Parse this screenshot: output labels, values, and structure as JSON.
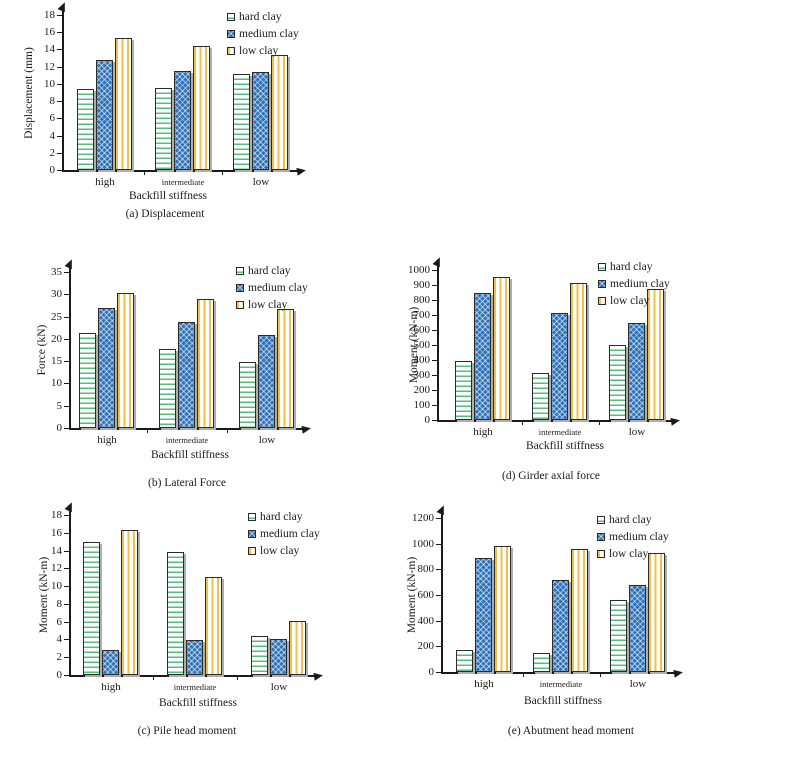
{
  "figure": {
    "x_axis_label": "Backfill stiffness",
    "categories": [
      "high",
      "intermediate",
      "low"
    ],
    "series_names": [
      "hard clay",
      "medium clay",
      "low clay"
    ]
  },
  "colors": {
    "green": "#56bd7e",
    "blue": "#2e72b8",
    "blue_light": "#a6c8e8",
    "yellow": "#f2bf4a",
    "axis": "#1a1a1a",
    "text": "#1b1b1b",
    "shadow": "#aeaeae",
    "background": "#ffffff"
  },
  "chart_data": [
    {
      "id": "a",
      "type": "bar",
      "caption": "(a) Displacement",
      "ylabel": "Displacement (mm)",
      "xlabel": "Backfill stiffness",
      "ylim": [
        0,
        18
      ],
      "ytick_step": 2,
      "yticks": [
        0,
        2,
        4,
        6,
        8,
        10,
        12,
        14,
        16,
        18
      ],
      "grid": false,
      "legend_position": "top-right",
      "categories": [
        "high",
        "intermediate",
        "low"
      ],
      "series": [
        {
          "name": "hard clay",
          "values": [
            9.4,
            9.5,
            11.2
          ]
        },
        {
          "name": "medium clay",
          "values": [
            12.8,
            11.5,
            11.4
          ]
        },
        {
          "name": "low clay",
          "values": [
            15.3,
            14.4,
            13.4
          ]
        }
      ]
    },
    {
      "id": "b",
      "type": "bar",
      "caption": "(b) Lateral Force",
      "ylabel": "Force (kN)",
      "xlabel": "Backfill stiffness",
      "ylim": [
        0,
        35
      ],
      "ytick_step": 5,
      "yticks": [
        0,
        5,
        10,
        15,
        20,
        25,
        30,
        35
      ],
      "grid": false,
      "legend_position": "top-right",
      "categories": [
        "high",
        "intermediate",
        "low"
      ],
      "series": [
        {
          "name": "hard clay",
          "values": [
            21.3,
            17.7,
            14.8
          ]
        },
        {
          "name": "medium clay",
          "values": [
            27.0,
            23.8,
            20.8
          ]
        },
        {
          "name": "low clay",
          "values": [
            30.4,
            28.9,
            26.6
          ]
        }
      ]
    },
    {
      "id": "d",
      "type": "bar",
      "caption": "(d) Girder axial force",
      "ylabel": "Moment (kN-m)",
      "xlabel": "Backfill stiffness",
      "ylim": [
        0,
        1000
      ],
      "ytick_step": 100,
      "yticks": [
        0,
        100,
        200,
        300,
        400,
        500,
        600,
        700,
        800,
        900,
        1000
      ],
      "grid": false,
      "legend_position": "top-right",
      "categories": [
        "high",
        "intermediate",
        "low"
      ],
      "series": [
        {
          "name": "hard clay",
          "values": [
            390,
            315,
            500
          ]
        },
        {
          "name": "medium clay",
          "values": [
            845,
            710,
            645
          ]
        },
        {
          "name": "low clay",
          "values": [
            950,
            915,
            875
          ]
        }
      ]
    },
    {
      "id": "c",
      "type": "bar",
      "caption": "(c) Pile head moment",
      "ylabel": "Moment (kN-m)",
      "xlabel": "Backfill stiffness",
      "ylim": [
        0,
        18
      ],
      "ytick_step": 2,
      "yticks": [
        0,
        2,
        4,
        6,
        8,
        10,
        12,
        14,
        16,
        18
      ],
      "grid": false,
      "legend_position": "top-right",
      "categories": [
        "high",
        "intermediate",
        "low"
      ],
      "series": [
        {
          "name": "hard clay",
          "values": [
            15.0,
            13.8,
            4.4
          ]
        },
        {
          "name": "medium clay",
          "values": [
            2.8,
            3.9,
            4.0
          ]
        },
        {
          "name": "low clay",
          "values": [
            16.3,
            11.0,
            6.1
          ]
        }
      ]
    },
    {
      "id": "e",
      "type": "bar",
      "caption": "(e) Abutment head moment",
      "ylabel": "Moment (kN-m)",
      "xlabel": "Backfill stiffness",
      "ylim": [
        0,
        1200
      ],
      "ytick_step": 200,
      "yticks": [
        0,
        200,
        400,
        600,
        800,
        1000,
        1200
      ],
      "grid": false,
      "legend_position": "top-right",
      "categories": [
        "high",
        "intermediate",
        "low"
      ],
      "series": [
        {
          "name": "hard clay",
          "values": [
            170,
            145,
            560
          ]
        },
        {
          "name": "medium clay",
          "values": [
            890,
            720,
            675
          ]
        },
        {
          "name": "low clay",
          "values": [
            980,
            960,
            930
          ]
        }
      ]
    }
  ]
}
